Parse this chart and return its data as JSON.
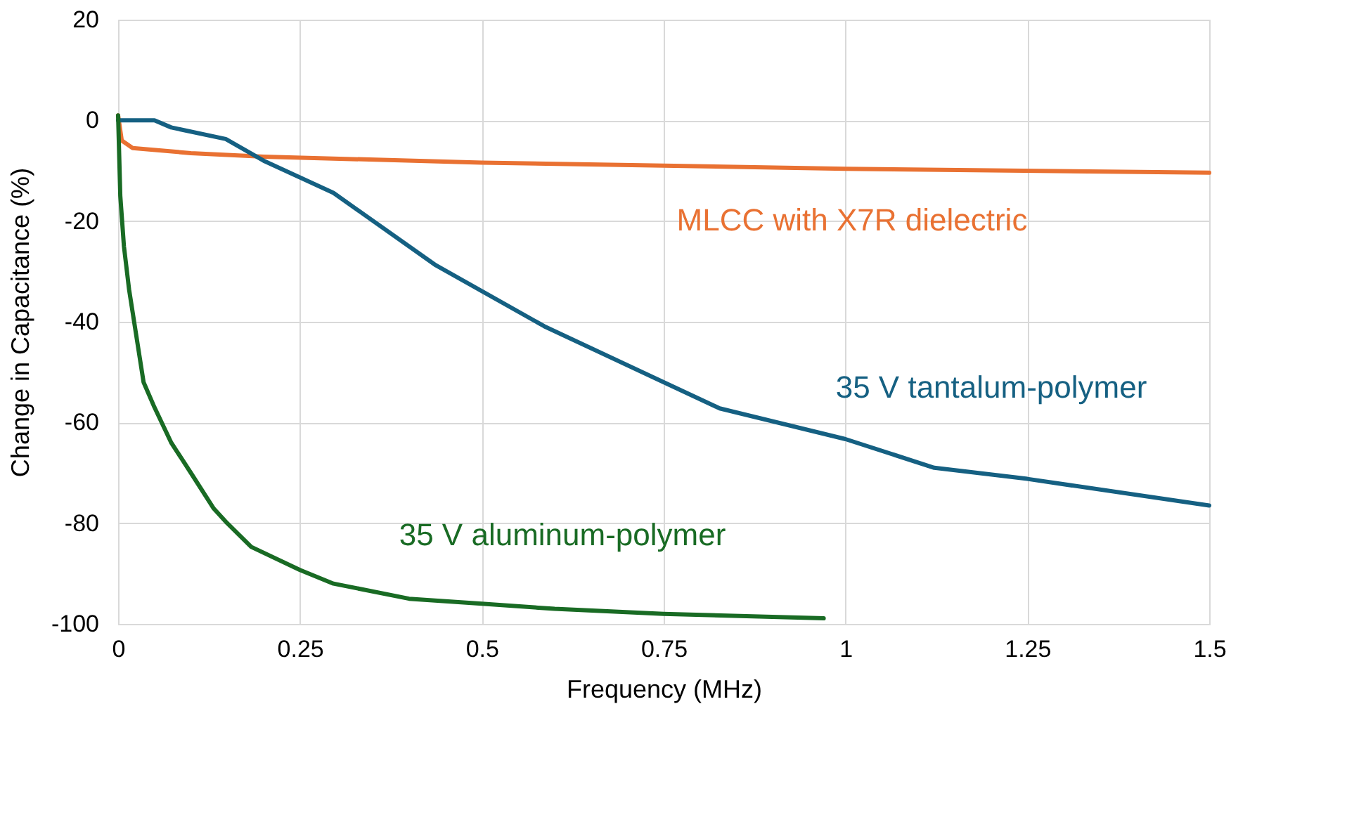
{
  "chart_data": {
    "type": "line",
    "xlabel": "Frequency (MHz)",
    "ylabel": "Change in Capacitance (%)",
    "xlim": [
      0,
      1.5
    ],
    "xticks": [
      0,
      0.25,
      0.5,
      0.75,
      1,
      1.25,
      1.5
    ],
    "ylim": [
      -100,
      20
    ],
    "yticks": [
      20,
      0,
      -20,
      -40,
      -60,
      -80,
      -100
    ],
    "grid": true,
    "line_style": "solid",
    "marker": "none",
    "series": [
      {
        "name": "MLCC with X7R dielectric",
        "color": "#e97132",
        "x": [
          0,
          0.005,
          0.02,
          0.1,
          0.2,
          0.5,
          0.75,
          1,
          1.5
        ],
        "values": [
          1,
          -4,
          -5.5,
          -6.5,
          -7.2,
          -8.4,
          -9,
          -9.6,
          -10.4
        ]
      },
      {
        "name": "35 V tantalum-polymer",
        "color": "#156082",
        "x": [
          0,
          0.05,
          0.073,
          0.148,
          0.2,
          0.296,
          0.437,
          0.586,
          0.75,
          0.827,
          1,
          1.122,
          1.25,
          1.5
        ],
        "values": [
          0,
          0,
          -1.4,
          -3.7,
          -8,
          -14.4,
          -28.8,
          -40.9,
          -52,
          -57.2,
          -63.3,
          -69,
          -71.2,
          -76.5
        ]
      },
      {
        "name": "35 V aluminum-polymer",
        "color": "#196b24",
        "x": [
          0,
          0.003,
          0.008,
          0.015,
          0.035,
          0.05,
          0.073,
          0.1,
          0.131,
          0.15,
          0.183,
          0.25,
          0.296,
          0.4,
          0.5,
          0.6,
          0.75,
          0.97
        ],
        "values": [
          1,
          -15,
          -25,
          -33.5,
          -52,
          -57,
          -64,
          -70,
          -77,
          -80,
          -84.7,
          -89.3,
          -92,
          -95,
          -96,
          -97,
          -98,
          -98.9
        ]
      }
    ]
  }
}
